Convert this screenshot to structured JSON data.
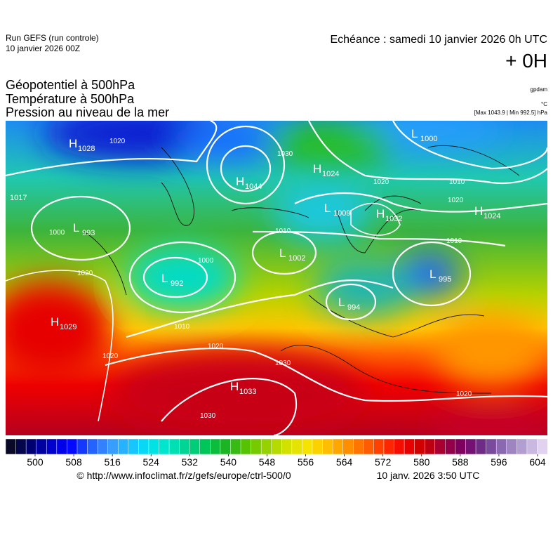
{
  "header": {
    "model": "Run GEFS (run controle)",
    "run_date": "10 janvier 2026 00Z",
    "echeance": "Echéance : samedi 10 janvier 2026 0h UTC",
    "lead": "+ 0H",
    "fields": [
      "Géopotentiel à 500hPa",
      "Température à 500hPa",
      "Pression au niveau de la mer"
    ],
    "unit_geopotential": "gpdam",
    "unit_temperature": "°C",
    "range_note": "[Max 1043.9 | Min 992.5] hPa"
  },
  "map": {
    "centers": [
      {
        "kind": "H",
        "value": 1028
      },
      {
        "kind": "L",
        "value": 993
      },
      {
        "value": 1017
      },
      {
        "kind": "H",
        "value": 1044
      },
      {
        "kind": "H",
        "value": 1024
      },
      {
        "kind": "L",
        "value": 1009
      },
      {
        "kind": "H",
        "value": 1032
      },
      {
        "kind": "L",
        "value": 1000
      },
      {
        "kind": "H",
        "value": 1024
      },
      {
        "kind": "L",
        "value": 1002
      },
      {
        "kind": "L",
        "value": 992
      },
      {
        "kind": "L",
        "value": 995
      },
      {
        "kind": "L",
        "value": 994
      },
      {
        "kind": "H",
        "value": 1029
      },
      {
        "kind": "H",
        "value": 1033
      }
    ],
    "isobar_labels": [
      1020,
      1030,
      1000,
      1010,
      1000,
      1010,
      1020,
      1020,
      1030,
      1020,
      1010,
      1020,
      1010,
      1020,
      1020,
      1030
    ]
  },
  "colorbar": {
    "ticks": [
      500,
      508,
      516,
      524,
      532,
      540,
      548,
      556,
      564,
      572,
      580,
      588,
      596,
      604
    ],
    "colors": [
      "#0a0a28",
      "#00006e",
      "#0000c8",
      "#0000ff",
      "#1e5aff",
      "#3c96ff",
      "#1ebeff",
      "#00e1f0",
      "#00e6c3",
      "#00d28c",
      "#00c350",
      "#1eb41e",
      "#5ac300",
      "#96d200",
      "#d2e100",
      "#f5e600",
      "#ffc300",
      "#ff9600",
      "#ff6400",
      "#ff3200",
      "#f00000",
      "#c80000",
      "#a0003c",
      "#780064",
      "#6e328c",
      "#8c6eb4",
      "#b4a0d2",
      "#e1d2f0"
    ]
  },
  "footer": {
    "source": "© http://www.infoclimat.fr/z/gefs/europe/ctrl-500/0",
    "generated": "10 janv. 2026  3:50 UTC"
  }
}
